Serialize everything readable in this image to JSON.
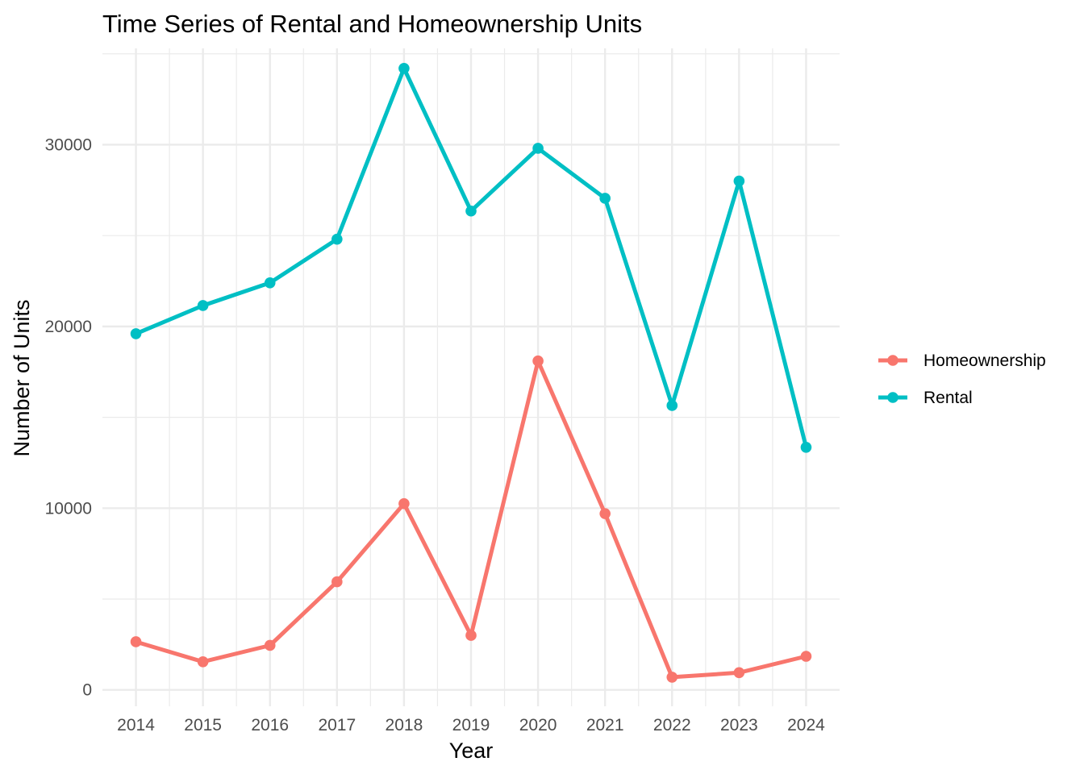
{
  "chart_data": {
    "type": "line",
    "title": "Time Series of Rental and Homeownership Units",
    "xlabel": "Year",
    "ylabel": "Number of Units",
    "x": [
      2014,
      2015,
      2016,
      2017,
      2018,
      2019,
      2020,
      2021,
      2022,
      2023,
      2024
    ],
    "x_tick_labels": [
      "2014",
      "2015",
      "2016",
      "2017",
      "2018",
      "2019",
      "2020",
      "2021",
      "2022",
      "2023",
      "2024"
    ],
    "y_ticks": [
      0,
      10000,
      20000,
      30000
    ],
    "y_tick_labels": [
      "0",
      "10000",
      "20000",
      "30000"
    ],
    "xlim": [
      2013.5,
      2024.5
    ],
    "ylim": [
      -900,
      35300
    ],
    "grid": true,
    "legend_position": "right",
    "series": [
      {
        "name": "Homeownership",
        "color": "#F8766D",
        "values": [
          2650,
          1550,
          2450,
          5950,
          10250,
          3000,
          18100,
          9700,
          700,
          950,
          1850
        ]
      },
      {
        "name": "Rental",
        "color": "#00BFC4",
        "values": [
          19600,
          21150,
          22400,
          24800,
          34200,
          26350,
          29800,
          27050,
          15650,
          28000,
          13350
        ]
      }
    ],
    "colors": {
      "grid": "#ebebeb",
      "background": "#ffffff"
    }
  }
}
